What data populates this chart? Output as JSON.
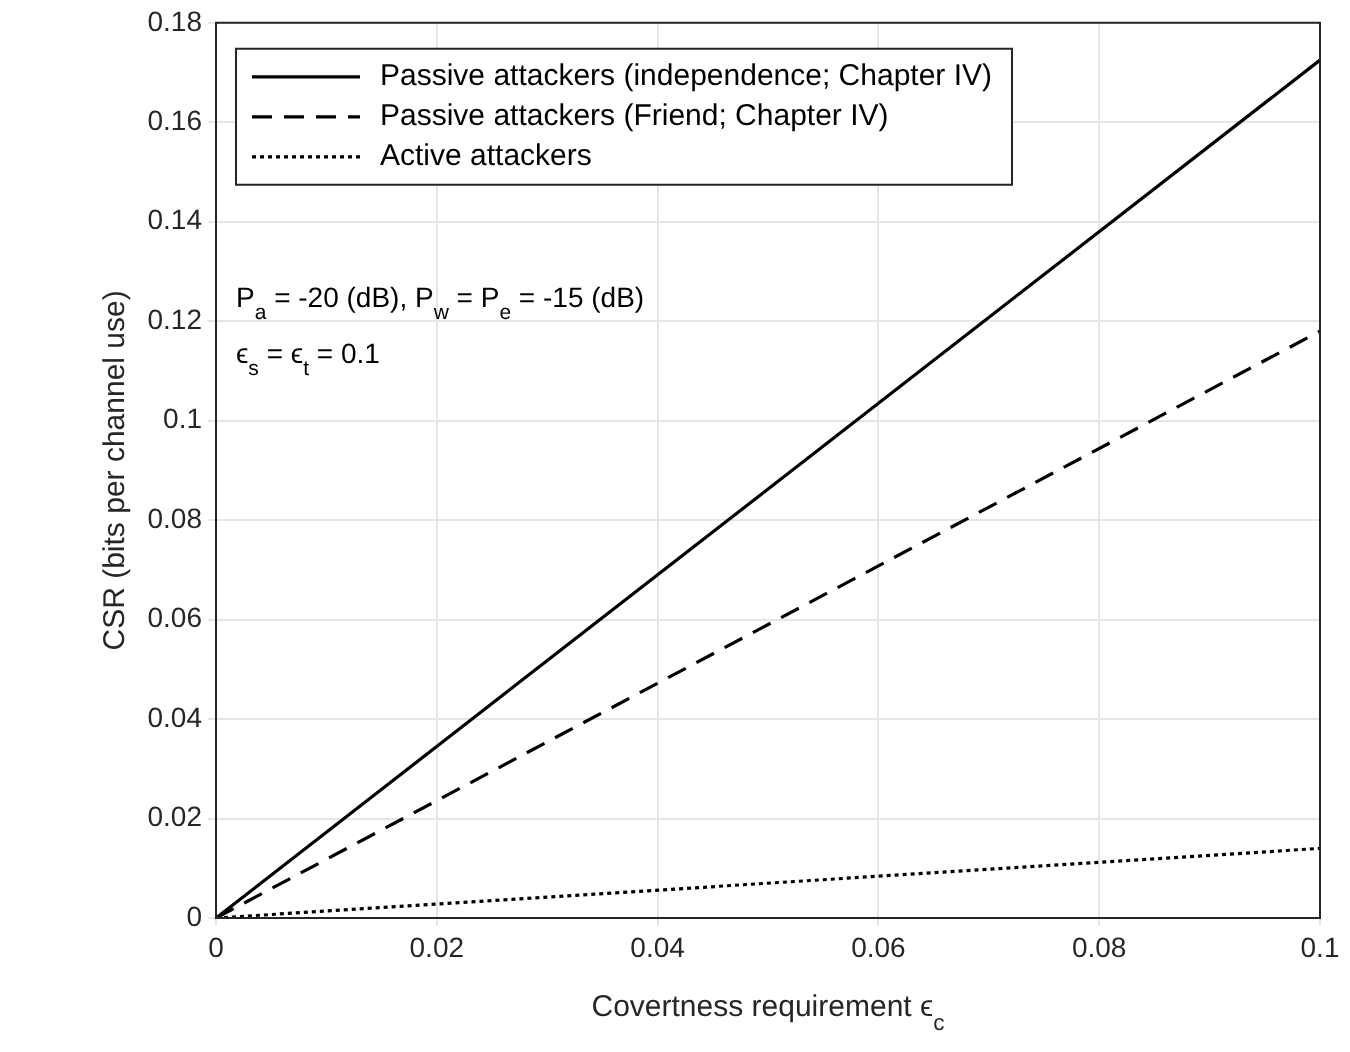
{
  "chart_data": {
    "type": "line",
    "xlabel": "Covertness requirement ϵ$_{c}$",
    "ylabel": "CSR (bits per channel use)",
    "x": [
      0,
      0.1
    ],
    "series": [
      {
        "name": "Passive attackers (independence; Chapter IV)",
        "color": "#000000",
        "values": [
          0,
          0.1725
        ],
        "line_style": "solid"
      },
      {
        "name": "Passive attackers (Friend; Chapter IV)",
        "color": "#000000",
        "values": [
          0,
          0.118
        ],
        "line_style": "dashed"
      },
      {
        "name": "Active attackers",
        "color": "#000000",
        "values": [
          0,
          0.014
        ],
        "line_style": "dotted"
      }
    ],
    "annotations": [
      "P$_{a}$ = -20 (dB), P$_{w}$ = P$_{e}$ = -15 (dB)",
      "ϵ$_{s}$ = ϵ$_{t}$ = 0.1"
    ],
    "xlim": [
      0,
      0.1
    ],
    "xticks": [
      0,
      0.02,
      0.04,
      0.06,
      0.08,
      0.1
    ],
    "ylim": [
      0,
      0.18
    ],
    "yticks": [
      0,
      0.02,
      0.04,
      0.06,
      0.08,
      0.1,
      0.12,
      0.14,
      0.16,
      0.18
    ],
    "grid": true,
    "legend": "top left",
    "marker": "none"
  }
}
